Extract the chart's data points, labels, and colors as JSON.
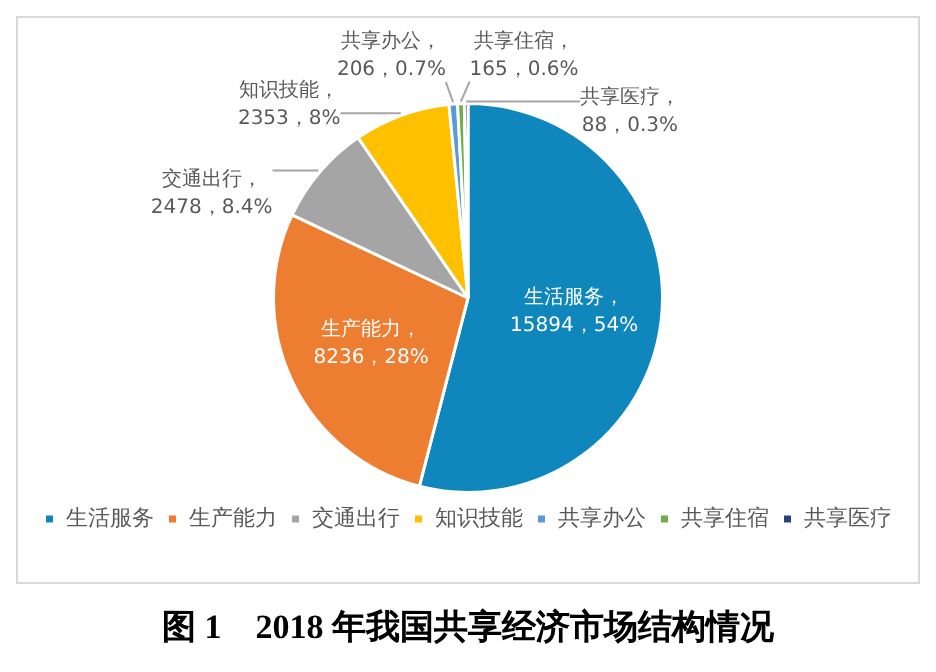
{
  "chart_data": {
    "type": "pie",
    "title": "图 1　2018 年我国共享经济市场结构情况",
    "categories": [
      "生活服务",
      "生产能力",
      "交通出行",
      "知识技能",
      "共享办公",
      "共享住宿",
      "共享医疗"
    ],
    "values": [
      15894,
      8236,
      2478,
      2353,
      206,
      165,
      88
    ],
    "value_labels": [
      "生活服务，15894，54%",
      "生产能力，8236，28%",
      "交通出行，2478，8.4%",
      "知识技能，2353，8%",
      "共享办公，206，0.7%",
      "共享住宿，165，0.6%",
      "共享医疗，88，0.3%"
    ],
    "colors": [
      "#0f87bd",
      "#ec7d31",
      "#a5a5a5",
      "#ffc000",
      "#5b9bd5",
      "#70ad47",
      "#264478"
    ],
    "legend": "bottom"
  }
}
